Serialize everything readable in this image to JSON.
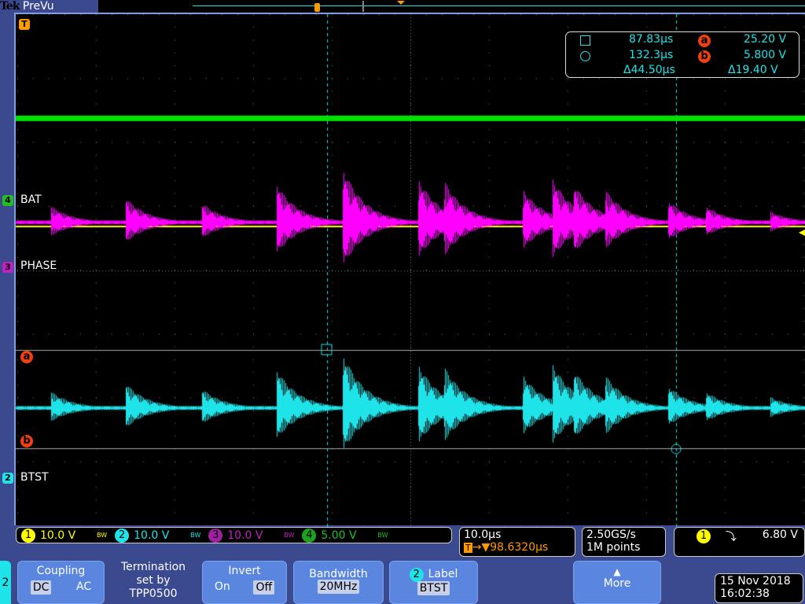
{
  "header": {
    "brand": "Tek",
    "mode": "PreVu"
  },
  "channels": [
    {
      "num": "1",
      "scale": "10.0 V",
      "color": "#ffff00"
    },
    {
      "num": "2",
      "scale": "10.0 V",
      "color": "#1ee3e8",
      "label": "BTST"
    },
    {
      "num": "3",
      "scale": "10.0 V",
      "color": "#c020c0",
      "label": "PHASE"
    },
    {
      "num": "4",
      "scale": "5.00 V",
      "color": "#20c020",
      "label": "BAT"
    }
  ],
  "bw_icon": "BW",
  "waveform_colors": {
    "ch1": "#ffff00",
    "ch2": "#1ee3e8",
    "ch3": "#ff00ff",
    "ch4": "#00e000"
  },
  "cursors": {
    "t1": "87.83µs",
    "t2": "132.3µs",
    "dt": "Δ44.50µs",
    "a_label": "a",
    "b_label": "b",
    "va": "25.20 V",
    "vb": "5.800 V",
    "dv": "Δ19.40 V"
  },
  "trigger_marker": "T",
  "timebase": {
    "scale": "10.0µs",
    "delay": "→▼98.6320µs"
  },
  "acquisition": {
    "rate": "2.50GS/s",
    "points": "1M points"
  },
  "trigger": {
    "source": "1",
    "slope": "falling-edge-icon",
    "slope_glyph": "⤵",
    "level": "6.80 V"
  },
  "menu": {
    "channel": "2",
    "coupling": {
      "title": "Coupling",
      "dc": "DC",
      "ac": "AC",
      "selected": "DC"
    },
    "termination": [
      "Termination",
      "set by",
      "TPP0500"
    ],
    "invert": {
      "title": "Invert",
      "on": "On",
      "off": "Off",
      "selected": "Off"
    },
    "bandwidth": {
      "title": "Bandwidth",
      "value": "20MHz"
    },
    "label": {
      "num": "2",
      "title": "Label",
      "value": "BTST"
    },
    "more": "More"
  },
  "datetime": {
    "date": "15 Nov 2018",
    "time": "16:02:38"
  }
}
